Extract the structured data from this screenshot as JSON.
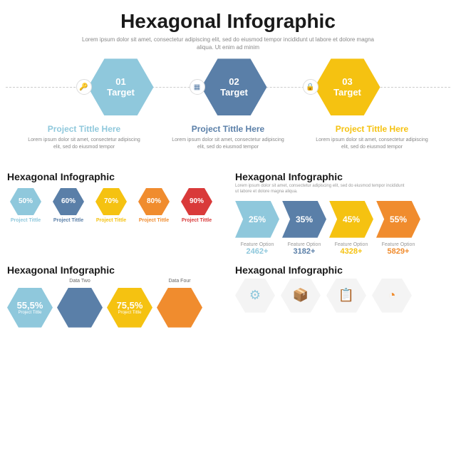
{
  "main": {
    "title": "Hexagonal Infographic",
    "subtitle": "Lorem ipsum dolor sit amet, consectetur adipiscing elit, sed do eiusmod tempor incididunt ut labore et dolore magna aliqua. Ut enim ad minim",
    "title_color": "#1a1a1a",
    "targets": [
      {
        "num": "01",
        "label": "Target",
        "color": "#8fc8dc",
        "icon": "🔑",
        "icon_color": "#8fc8dc",
        "proj_title": "Project Tittle Here",
        "proj_color": "#8fc8dc",
        "desc": "Lorem ipsum dolor sit amet, consectetur adipiscing elit, sed do eiusmod tempor"
      },
      {
        "num": "02",
        "label": "Target",
        "color": "#5a7fa8",
        "icon": "▦",
        "icon_color": "#5a7fa8",
        "proj_title": "Project Tittle Here",
        "proj_color": "#5a7fa8",
        "desc": "Lorem ipsum dolor sit amet, consectetur adipiscing elit, sed do eiusmod tempor"
      },
      {
        "num": "03",
        "label": "Target",
        "color": "#f5c211",
        "icon": "🔒",
        "icon_color": "#f5c211",
        "proj_title": "Project Tittle Here",
        "proj_color": "#f5c211",
        "desc": "Lorem ipsum dolor sit amet, consectetur adipiscing elit, sed do eiusmod tempor"
      }
    ]
  },
  "section_left": {
    "title": "Hexagonal Infographic",
    "sub": "",
    "items": [
      {
        "pct": "50%",
        "color": "#8fc8dc",
        "label": "Project Tittle",
        "label_color": "#8fc8dc"
      },
      {
        "pct": "60%",
        "color": "#5a7fa8",
        "label": "Project Tittle",
        "label_color": "#5a7fa8"
      },
      {
        "pct": "70%",
        "color": "#f5c211",
        "label": "Project Tittle",
        "label_color": "#f5c211"
      },
      {
        "pct": "80%",
        "color": "#f08c2e",
        "label": "Project Tittle",
        "label_color": "#f08c2e"
      },
      {
        "pct": "90%",
        "color": "#d93a3a",
        "label": "Project Tittle",
        "label_color": "#d93a3a"
      }
    ]
  },
  "section_right": {
    "title": "Hexagonal Infographic",
    "sub": "Lorem ipsum dolor sit amet, consectetur adipiscing elit, sed do eiusmod tempor incididunt ut labore et dolore magna aliqua.",
    "arrows": [
      {
        "pct": "25%",
        "color": "#8fc8dc",
        "feat": "Feature Option",
        "val": "2462+",
        "val_color": "#8fc8dc"
      },
      {
        "pct": "35%",
        "color": "#5a7fa8",
        "feat": "Feature Option",
        "val": "3182+",
        "val_color": "#5a7fa8"
      },
      {
        "pct": "45%",
        "color": "#f5c211",
        "feat": "Feature Option",
        "val": "4328+",
        "val_color": "#f5c211"
      },
      {
        "pct": "55%",
        "color": "#f08c2e",
        "feat": "Feature Option",
        "val": "5829+",
        "val_color": "#f08c2e"
      }
    ]
  },
  "bottom_left": {
    "title": "Hexagonal Infographic",
    "items": [
      {
        "label": "",
        "pct": "55,5%",
        "sub": "Project Tittle",
        "color": "#8fc8dc"
      },
      {
        "label": "Data Two",
        "pct": "",
        "sub": "",
        "color": "#5a7fa8"
      },
      {
        "label": "",
        "pct": "75,5%",
        "sub": "Project Tittle",
        "color": "#f5c211"
      },
      {
        "label": "Data Four",
        "pct": "",
        "sub": "",
        "color": "#f08c2e"
      }
    ]
  },
  "bottom_right": {
    "title": "Hexagonal Infographic",
    "icons": [
      {
        "glyph": "⚙",
        "color": "#8fc8dc"
      },
      {
        "glyph": "📦",
        "color": "#5a7fa8"
      },
      {
        "glyph": "📋",
        "color": "#f5c211"
      },
      {
        "glyph": "◔",
        "color": "#f08c2e"
      }
    ]
  },
  "style": {
    "bg": "#ffffff",
    "text": "#1a1a1a",
    "muted": "#888888"
  }
}
